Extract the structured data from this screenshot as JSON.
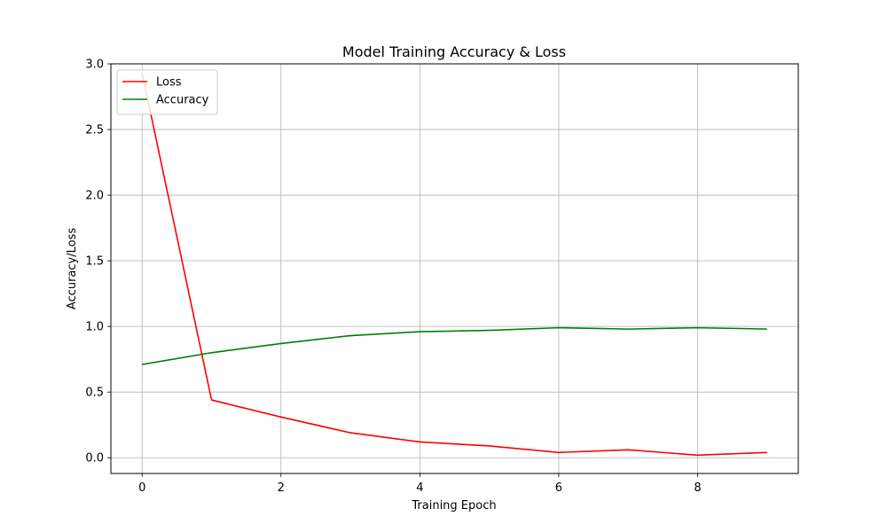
{
  "chart_data": {
    "type": "line",
    "title": "Model Training Accuracy & Loss",
    "xlabel": "Training Epoch",
    "ylabel": "Accuracy/Loss",
    "x": [
      0,
      1,
      2,
      3,
      4,
      5,
      6,
      7,
      8,
      9
    ],
    "xlim": [
      -0.45,
      9.45
    ],
    "ylim": [
      -0.12,
      3.0
    ],
    "xticks": [
      0,
      2,
      4,
      6,
      8
    ],
    "xtick_labels": [
      "0",
      "2",
      "4",
      "6",
      "8"
    ],
    "yticks": [
      0.0,
      0.5,
      1.0,
      1.5,
      2.0,
      2.5,
      3.0
    ],
    "ytick_labels": [
      "0.0",
      "0.5",
      "1.0",
      "1.5",
      "2.0",
      "2.5",
      "3.0"
    ],
    "grid": true,
    "legend_position": "top-left",
    "series": [
      {
        "name": "Loss",
        "color": "#ff0000",
        "values": [
          2.93,
          0.44,
          0.31,
          0.19,
          0.12,
          0.09,
          0.04,
          0.06,
          0.02,
          0.04
        ]
      },
      {
        "name": "Accuracy",
        "color": "#008000",
        "values": [
          0.71,
          0.8,
          0.87,
          0.93,
          0.96,
          0.97,
          0.99,
          0.98,
          0.99,
          0.98
        ]
      }
    ]
  }
}
